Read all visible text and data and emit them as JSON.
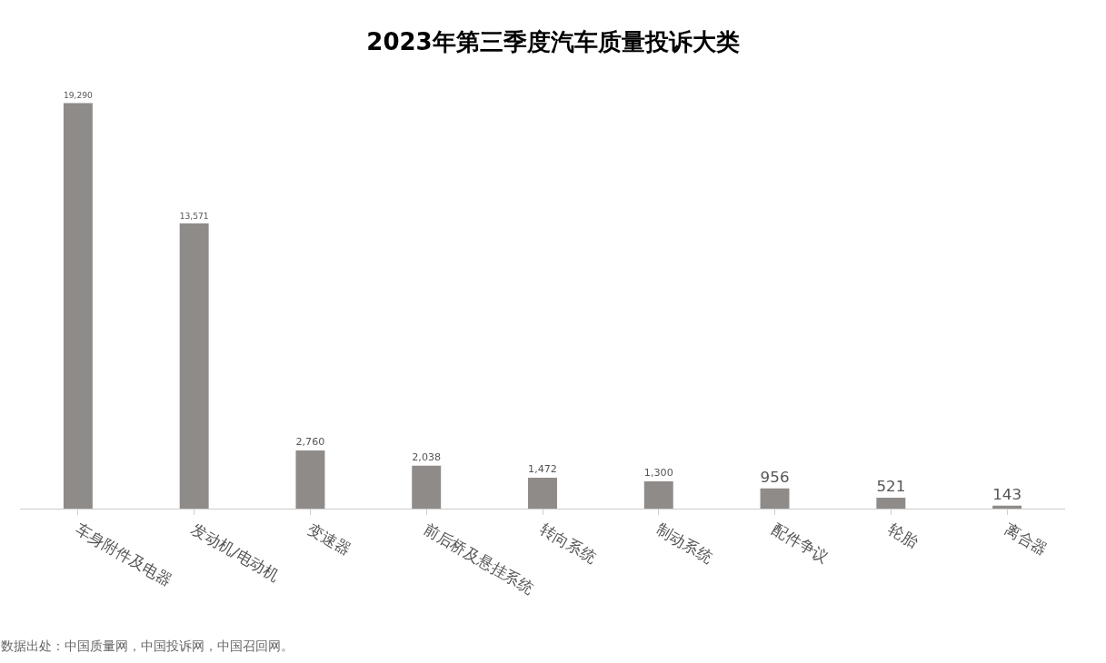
{
  "chart_data": {
    "type": "bar",
    "title": "2023年第三季度汽车质量投诉大类",
    "categories": [
      "车身附件及电器",
      "发动机/电动机",
      "变速器",
      "前后桥及悬挂系统",
      "转向系统",
      "制动系统",
      "配件争议",
      "轮胎",
      "离合器"
    ],
    "values": [
      19290,
      13571,
      2760,
      2038,
      1472,
      1300,
      956,
      521,
      143
    ],
    "value_labels": [
      "19,290",
      "13,571",
      "2,760",
      "2,038",
      "1,472",
      "1,300",
      "956",
      "521",
      "143"
    ],
    "color": "#8f8b89",
    "grid": false,
    "legend": false,
    "tick_labels": "x",
    "annotations": [
      "数据出处：中国质量网，中国投诉网，中国召回网。"
    ]
  }
}
